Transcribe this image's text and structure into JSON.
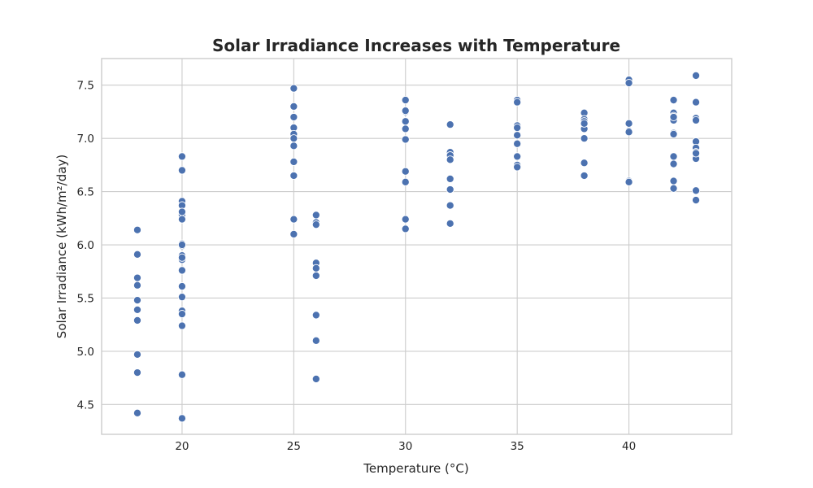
{
  "chart_data": {
    "type": "scatter",
    "title": "Solar Irradiance Increases with Temperature",
    "xlabel": "Temperature (°C)",
    "ylabel": "Solar Irradiance (kWh/m²/day)",
    "xlim": [
      16.4,
      44.6
    ],
    "ylim": [
      4.22,
      7.75
    ],
    "xticks": [
      20,
      25,
      30,
      35,
      40
    ],
    "xtick_labels": [
      "20",
      "25",
      "30",
      "35",
      "40"
    ],
    "yticks": [
      4.5,
      5.0,
      5.5,
      6.0,
      6.5,
      7.0,
      7.5
    ],
    "ytick_labels": [
      "4.5",
      "5.0",
      "5.5",
      "6.0",
      "6.5",
      "7.0",
      "7.5"
    ],
    "grid": true,
    "legend": false,
    "color": "#4c72b0",
    "series": [
      {
        "x": [
          18,
          18,
          18,
          18,
          18,
          18,
          18,
          18,
          18,
          18,
          20,
          20,
          20,
          20,
          20,
          20,
          20,
          20,
          20,
          20,
          20,
          20,
          20,
          20,
          20,
          20,
          20,
          20,
          20,
          20,
          20,
          25,
          25,
          25,
          25,
          25,
          25,
          25,
          25,
          25,
          25,
          25,
          26,
          26,
          26,
          26,
          26,
          26,
          26,
          26,
          26,
          30,
          30,
          30,
          30,
          30,
          30,
          30,
          30,
          30,
          30,
          32,
          32,
          32,
          32,
          32,
          32,
          32,
          32,
          35,
          35,
          35,
          35,
          35,
          35,
          35,
          35,
          35,
          38,
          38,
          38,
          38,
          38,
          38,
          38,
          38,
          40,
          40,
          40,
          40,
          40,
          40,
          40,
          42,
          42,
          42,
          42,
          42,
          42,
          42,
          42,
          42,
          42,
          42,
          42,
          43,
          43,
          43,
          43,
          43,
          43,
          43,
          43,
          43,
          43,
          43
        ],
        "y": [
          6.14,
          5.91,
          5.69,
          5.62,
          5.48,
          5.39,
          5.29,
          4.97,
          4.8,
          4.42,
          6.83,
          6.7,
          6.41,
          6.37,
          6.28,
          6.24,
          6.01,
          5.99,
          5.9,
          5.86,
          5.76,
          5.61,
          5.51,
          5.38,
          5.35,
          5.24,
          4.78,
          4.37,
          6.31,
          5.88,
          6.0,
          7.47,
          7.3,
          7.2,
          7.1,
          7.04,
          6.93,
          6.78,
          6.65,
          6.24,
          6.1,
          7.0,
          6.28,
          6.21,
          6.19,
          5.83,
          5.78,
          5.71,
          5.34,
          5.1,
          4.74,
          7.36,
          7.25,
          7.16,
          7.09,
          6.99,
          6.69,
          6.59,
          6.24,
          6.15,
          7.26,
          7.13,
          6.87,
          6.84,
          6.8,
          6.62,
          6.52,
          6.37,
          6.2,
          7.36,
          7.34,
          7.12,
          7.1,
          7.03,
          6.95,
          6.83,
          6.75,
          6.73,
          7.24,
          7.18,
          7.16,
          7.09,
          7.0,
          6.77,
          6.65,
          7.14,
          7.55,
          7.52,
          7.14,
          7.07,
          7.06,
          6.6,
          6.59,
          7.36,
          7.24,
          7.21,
          7.19,
          7.17,
          7.05,
          7.04,
          6.83,
          6.76,
          6.6,
          6.53,
          7.2,
          7.59,
          7.34,
          7.19,
          7.17,
          6.97,
          6.91,
          6.87,
          6.81,
          6.51,
          6.42,
          6.86
        ]
      }
    ]
  }
}
